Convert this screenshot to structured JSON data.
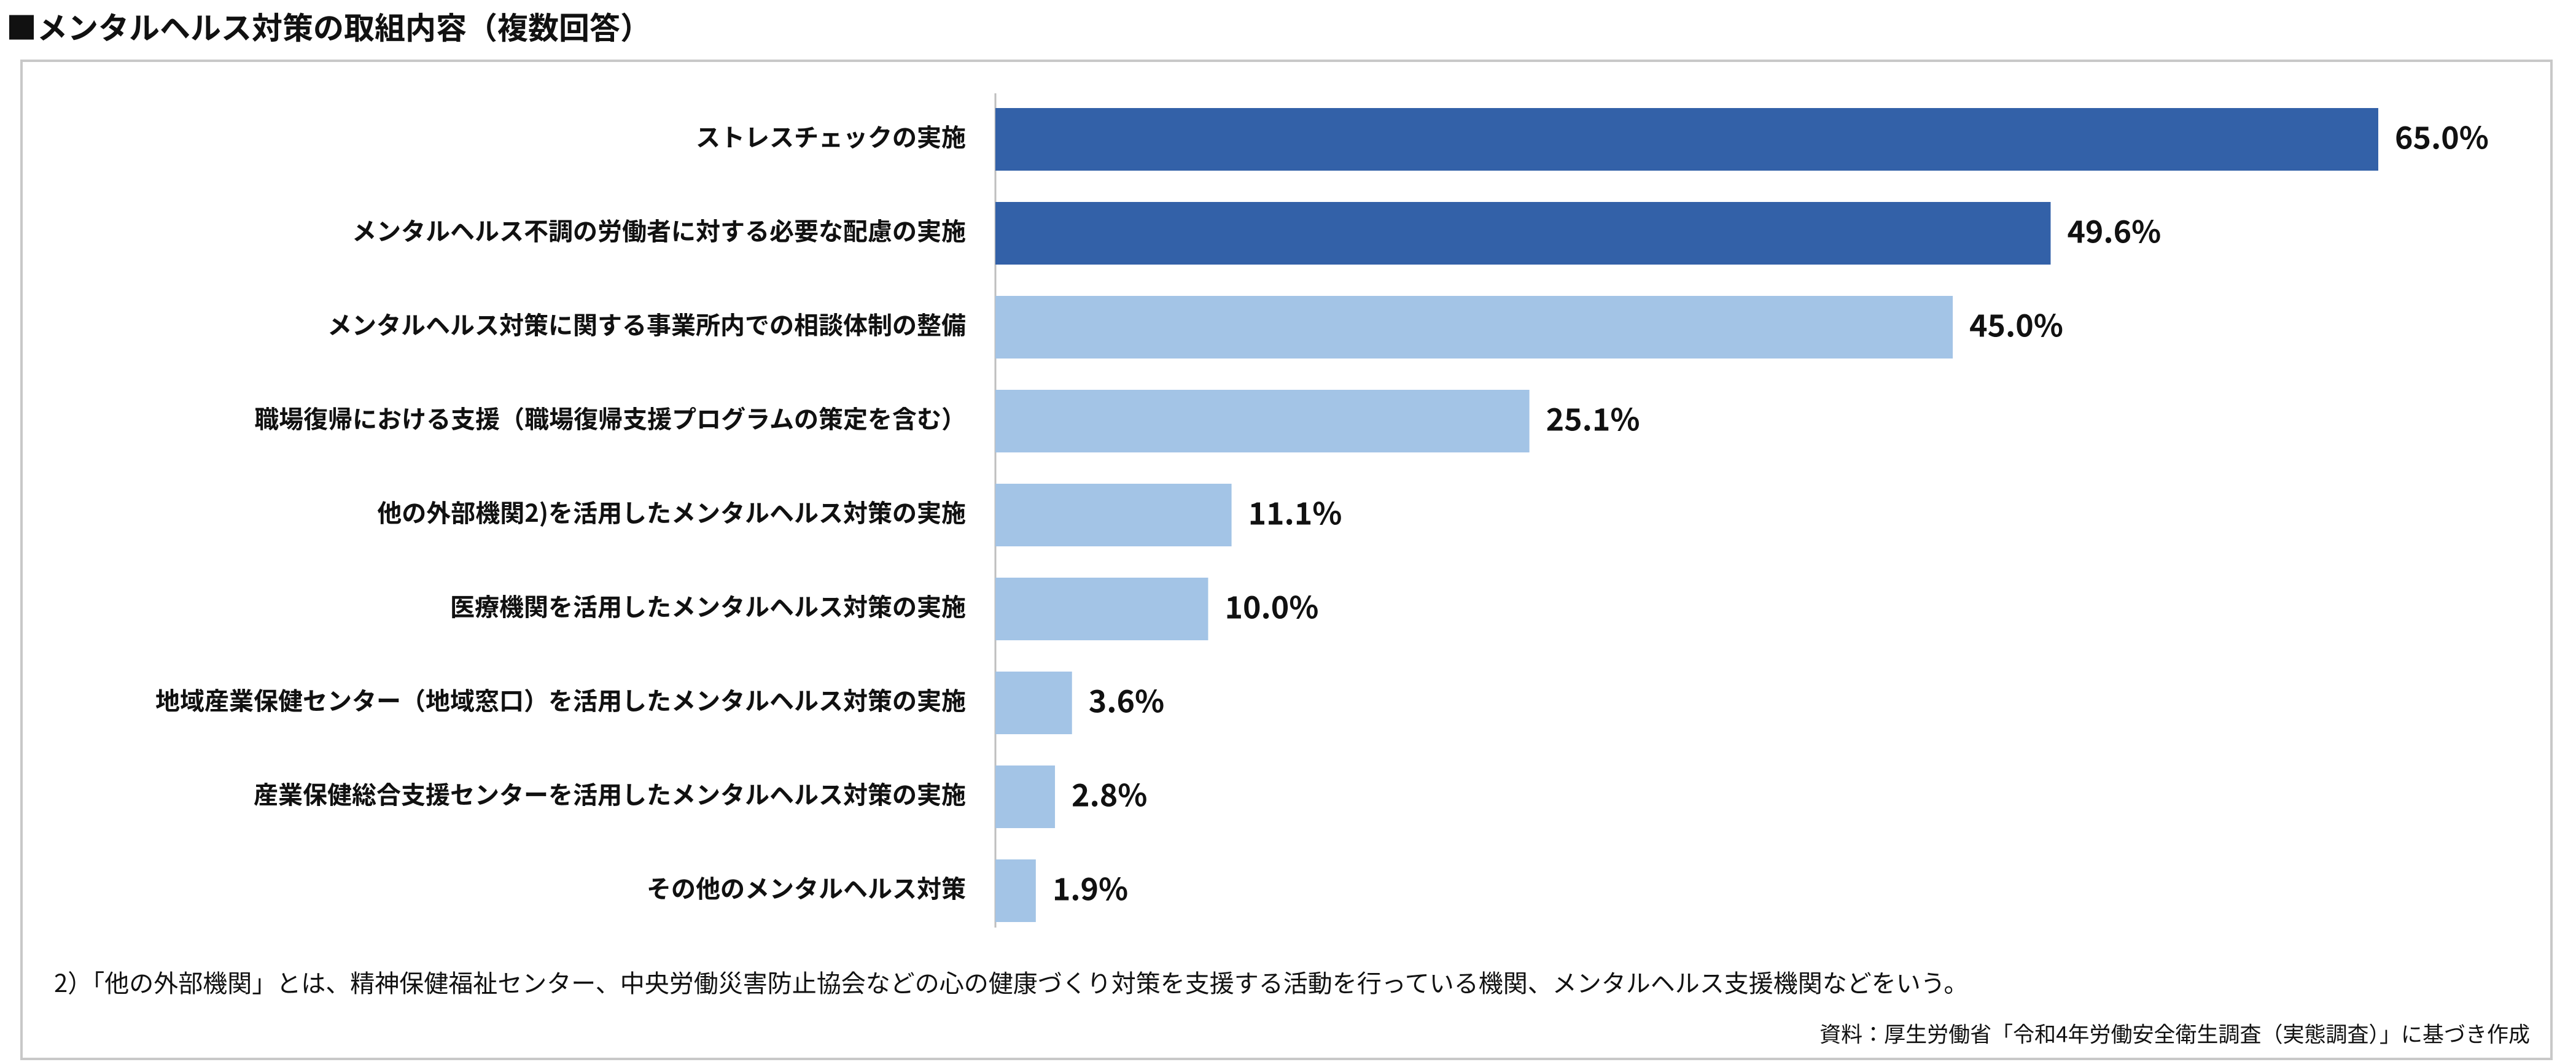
{
  "chart_data": {
    "type": "bar",
    "orientation": "horizontal",
    "title": "■メンタルヘルス対策の取組内容（複数回答）",
    "categories": [
      "ストレスチェックの実施",
      "メンタルヘルス不調の労働者に対する必要な配慮の実施",
      "メンタルヘルス対策に関する事業所内での相談体制の整備",
      "職場復帰における支援（職場復帰支援プログラムの策定を含む）",
      "他の外部機関2)を活用したメンタルヘルス対策の実施",
      "医療機関を活用したメンタルヘルス対策の実施",
      "地域産業保健センター（地域窓口）を活用したメンタルヘルス対策の実施",
      "産業保健総合支援センターを活用したメンタルヘルス対策の実施",
      "その他のメンタルヘルス対策"
    ],
    "values": [
      65.0,
      49.6,
      45.0,
      25.1,
      11.1,
      10.0,
      3.6,
      2.8,
      1.9
    ],
    "value_labels": [
      "65.0%",
      "49.6%",
      "45.0%",
      "25.1%",
      "11.1%",
      "10.0%",
      "3.6%",
      "2.8%",
      "1.9%"
    ],
    "colors": [
      "#3361a8",
      "#3361a8",
      "#a3c4e6",
      "#a3c4e6",
      "#a3c4e6",
      "#a3c4e6",
      "#a3c4e6",
      "#a3c4e6",
      "#a3c4e6"
    ],
    "footnote": "2）「他の外部機関」とは、精神保健福祉センター、中央労働災害防止協会などの心の健康づくり対策を支援する活動を行っている機関、メンタルヘルス支援機関などをいう。",
    "source": "資料：厚生労働省「令和4年労働安全衛生調査（実態調査）」に基づき作成"
  }
}
